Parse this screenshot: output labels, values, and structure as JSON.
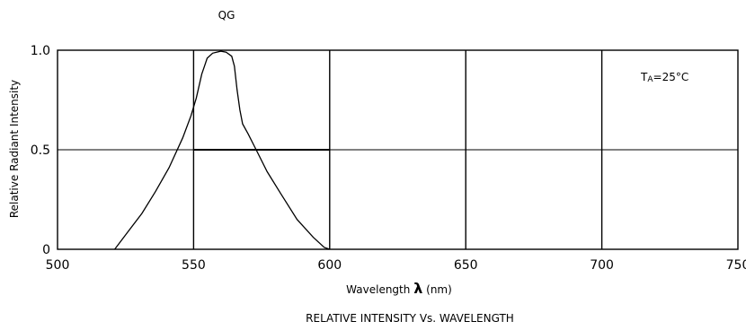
{
  "chart_data": {
    "type": "line",
    "title": "QG",
    "subtitle": "RELATIVE INTENSITY Vs. WAVELENGTH",
    "xlabel": "Wavelength",
    "xlabel_symbol": "λ",
    "xlabel_unit": "(nm)",
    "ylabel": "Relative Radiant Intensity",
    "xlim": [
      500,
      750
    ],
    "ylim": [
      0,
      1.0
    ],
    "x_ticks": [
      500,
      550,
      600,
      650,
      700,
      750
    ],
    "y_ticks": [
      0,
      0.5,
      1.0
    ],
    "x_tick_labels": [
      "500",
      "550",
      "600",
      "650",
      "700",
      "750"
    ],
    "y_tick_labels": [
      "0",
      "0.5",
      "1.0"
    ],
    "grid": true,
    "annotation": {
      "text_main": "T",
      "text_sub": "A",
      "text_rest": "=25°C",
      "position": "top-right"
    },
    "half_max_line": {
      "x_start": 550,
      "x_end": 600,
      "y": 0.5
    },
    "series": [
      {
        "x": [
          521,
          526,
          531,
          536,
          541,
          546,
          549,
          551,
          553,
          554,
          555,
          557,
          560,
          562,
          564,
          565,
          566,
          567,
          568,
          570,
          573,
          577,
          582,
          588,
          594,
          598,
          600
        ],
        "values": [
          0.0,
          0.09,
          0.18,
          0.29,
          0.41,
          0.56,
          0.67,
          0.76,
          0.88,
          0.92,
          0.96,
          0.985,
          0.995,
          0.99,
          0.97,
          0.92,
          0.8,
          0.7,
          0.63,
          0.58,
          0.5,
          0.39,
          0.28,
          0.15,
          0.06,
          0.01,
          0.0
        ]
      }
    ]
  }
}
